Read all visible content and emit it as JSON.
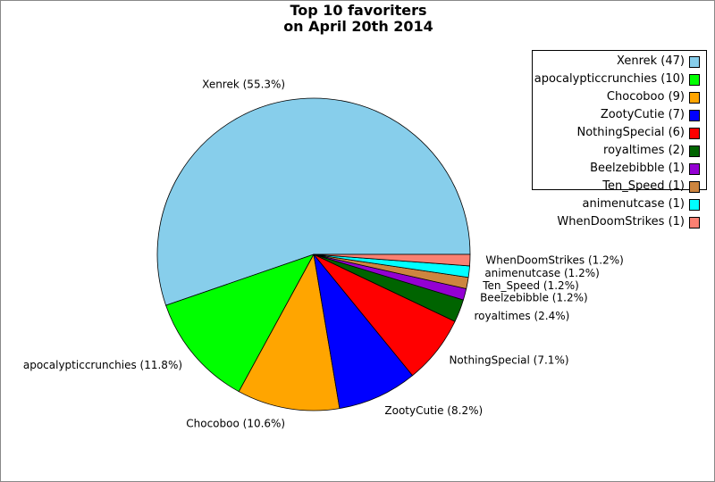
{
  "chart_data": {
    "type": "pie",
    "title_lines": [
      "Top 10 favoriters",
      "on April 20th 2014"
    ],
    "legend_position": "top-right",
    "slices": [
      {
        "name": "Xenrek",
        "value": 47,
        "percent_label": "Xenrek (55.3%)",
        "legend_label": "Xenrek (47)",
        "color": "#87ceeb"
      },
      {
        "name": "apocalypticcrunchies",
        "value": 10,
        "percent_label": "apocalypticcrunchies (11.8%)",
        "legend_label": "apocalypticcrunchies (10)",
        "color": "#00ff00"
      },
      {
        "name": "Chocoboo",
        "value": 9,
        "percent_label": "Chocoboo (10.6%)",
        "legend_label": "Chocoboo (9)",
        "color": "#ffa500"
      },
      {
        "name": "ZootyCutie",
        "value": 7,
        "percent_label": "ZootyCutie (8.2%)",
        "legend_label": "ZootyCutie (7)",
        "color": "#0000ff"
      },
      {
        "name": "NothingSpecial",
        "value": 6,
        "percent_label": "NothingSpecial (7.1%)",
        "legend_label": "NothingSpecial (6)",
        "color": "#ff0000"
      },
      {
        "name": "royaltimes",
        "value": 2,
        "percent_label": "royaltimes (2.4%)",
        "legend_label": "royaltimes (2)",
        "color": "#006400"
      },
      {
        "name": "Beelzebibble",
        "value": 1,
        "percent_label": "Beelzebibble (1.2%)",
        "legend_label": "Beelzebibble (1)",
        "color": "#9400d3"
      },
      {
        "name": "Ten_Speed",
        "value": 1,
        "percent_label": "Ten_Speed (1.2%)",
        "legend_label": "Ten_Speed (1)",
        "color": "#cd853f"
      },
      {
        "name": "animenutcase",
        "value": 1,
        "percent_label": "animenutcase (1.2%)",
        "legend_label": "animenutcase (1)",
        "color": "#00ffff"
      },
      {
        "name": "WhenDoomStrikes",
        "value": 1,
        "percent_label": "WhenDoomStrikes (1.2%)",
        "legend_label": "WhenDoomStrikes (1)",
        "color": "#fa8072"
      }
    ]
  }
}
